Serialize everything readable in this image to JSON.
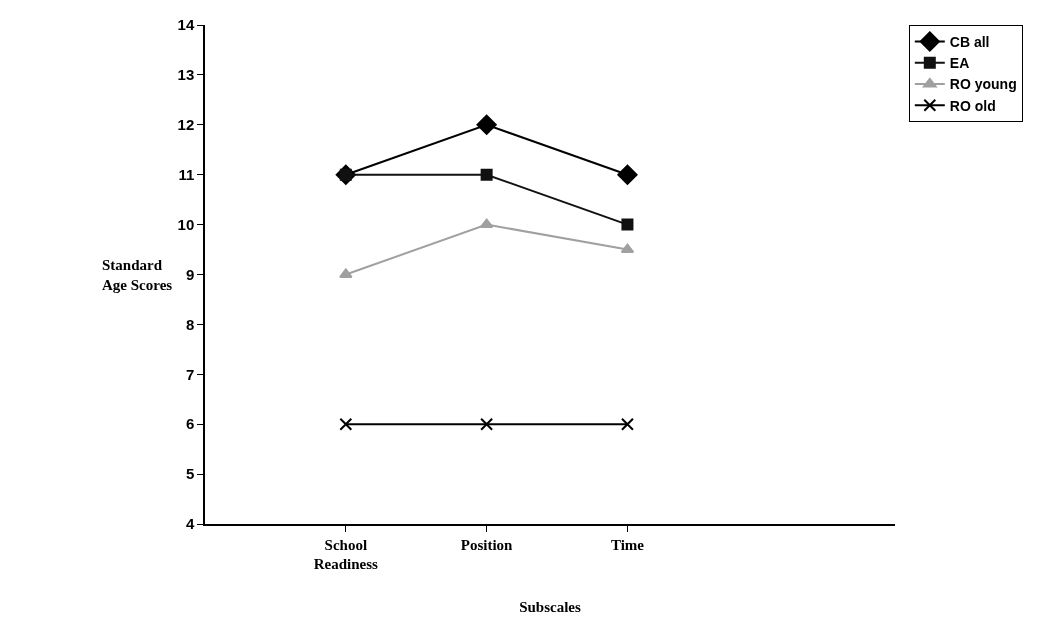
{
  "chart_data": {
    "type": "line",
    "xlabel": "Subscales",
    "ylabel": "Standard Age Scores",
    "categories": [
      "School Readiness",
      "Position",
      "Time"
    ],
    "series": [
      {
        "name": "CB all",
        "color": "#000000",
        "marker": "diamond",
        "values": [
          11,
          12,
          11
        ]
      },
      {
        "name": "EA",
        "color": "#111111",
        "marker": "square",
        "values": [
          11,
          11,
          10
        ]
      },
      {
        "name": "RO young",
        "color": "#a0a0a0",
        "marker": "triangle",
        "values": [
          9,
          10,
          9.5
        ]
      },
      {
        "name": "RO old",
        "color": "#000000",
        "marker": "cross",
        "values": [
          6,
          6,
          6
        ]
      }
    ],
    "ylim": [
      4,
      14
    ],
    "yticks": [
      4,
      5,
      6,
      7,
      8,
      9,
      10,
      11,
      12,
      13,
      14
    ],
    "grid": false,
    "legend": "top right",
    "line_style": "solid"
  }
}
